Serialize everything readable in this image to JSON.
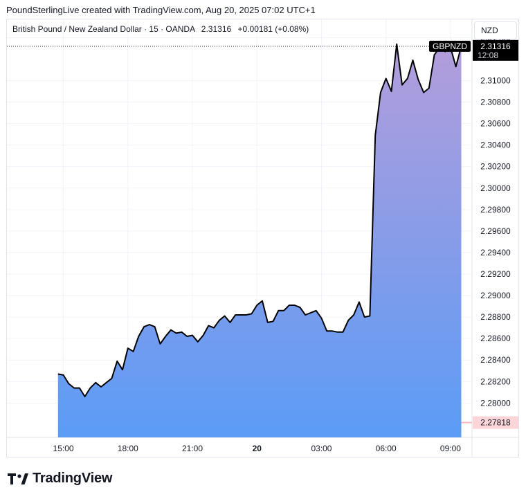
{
  "header": {
    "attribution": "PoundSterlingLive created with TradingView.com, Aug 20, 2025 07:02 UTC+1"
  },
  "legend": {
    "title": "British Pound / New Zealand Dollar · 15 · OANDA",
    "last": "2.31316",
    "change": "+0.00181 (+0.08%)"
  },
  "currency_button": "NZD",
  "branding": {
    "name": "TradingView"
  },
  "chart_data": {
    "type": "area",
    "symbol": "GBPNZD",
    "last_label": {
      "price": "2.31316",
      "countdown": "12:08"
    },
    "low_marker_label": "2.27818",
    "colors": {
      "line": "#000000",
      "fill_top": "#b39ddb",
      "fill_bottom": "#5b9cf6",
      "low_marker": "#f7b9bd",
      "grid": "#f0f3fa"
    },
    "ylim": [
      2.2768,
      2.3157
    ],
    "y_ticks": [
      "2.28000",
      "2.28200",
      "2.28400",
      "2.28600",
      "2.28800",
      "2.29000",
      "2.29200",
      "2.29400",
      "2.29600",
      "2.29800",
      "2.30000",
      "2.30200",
      "2.30400",
      "2.30600",
      "2.30800",
      "2.31000",
      "2.31400"
    ],
    "x_ticks": [
      {
        "label": "15:00",
        "t": 1
      },
      {
        "label": "18:00",
        "t": 13
      },
      {
        "label": "21:00",
        "t": 25
      },
      {
        "label": "20",
        "t": 37,
        "bold": true
      },
      {
        "label": "03:00",
        "t": 49
      },
      {
        "label": "06:00",
        "t": 61
      },
      {
        "label": "09:00",
        "t": 73
      }
    ],
    "x_range": [
      -9.5,
      77
    ],
    "values": [
      2.2827,
      2.2826,
      2.2818,
      2.2814,
      2.2814,
      2.2806,
      2.2814,
      2.2819,
      2.2815,
      2.2819,
      2.2823,
      2.2839,
      2.2831,
      2.2851,
      2.2848,
      2.2862,
      2.2871,
      2.2873,
      2.2871,
      2.2855,
      2.2862,
      2.2868,
      2.2865,
      2.2866,
      2.2862,
      2.2863,
      2.2857,
      2.2863,
      2.2872,
      2.287,
      2.2877,
      2.2881,
      2.2875,
      2.2882,
      2.2882,
      2.2882,
      2.2883,
      2.2891,
      2.2895,
      2.2875,
      2.2876,
      2.2886,
      2.2886,
      2.2891,
      2.2891,
      2.2889,
      2.2882,
      2.2884,
      2.2886,
      2.2879,
      2.2867,
      2.2867,
      2.2866,
      2.2866,
      2.2877,
      2.2882,
      2.2894,
      2.288,
      2.2881,
      2.3049,
      2.3089,
      2.3102,
      2.309,
      2.3134,
      2.3096,
      2.3102,
      2.3119,
      2.3101,
      2.3089,
      2.3093,
      2.3124,
      2.3131,
      2.3127,
      2.3131,
      2.3113,
      2.3132
    ]
  }
}
